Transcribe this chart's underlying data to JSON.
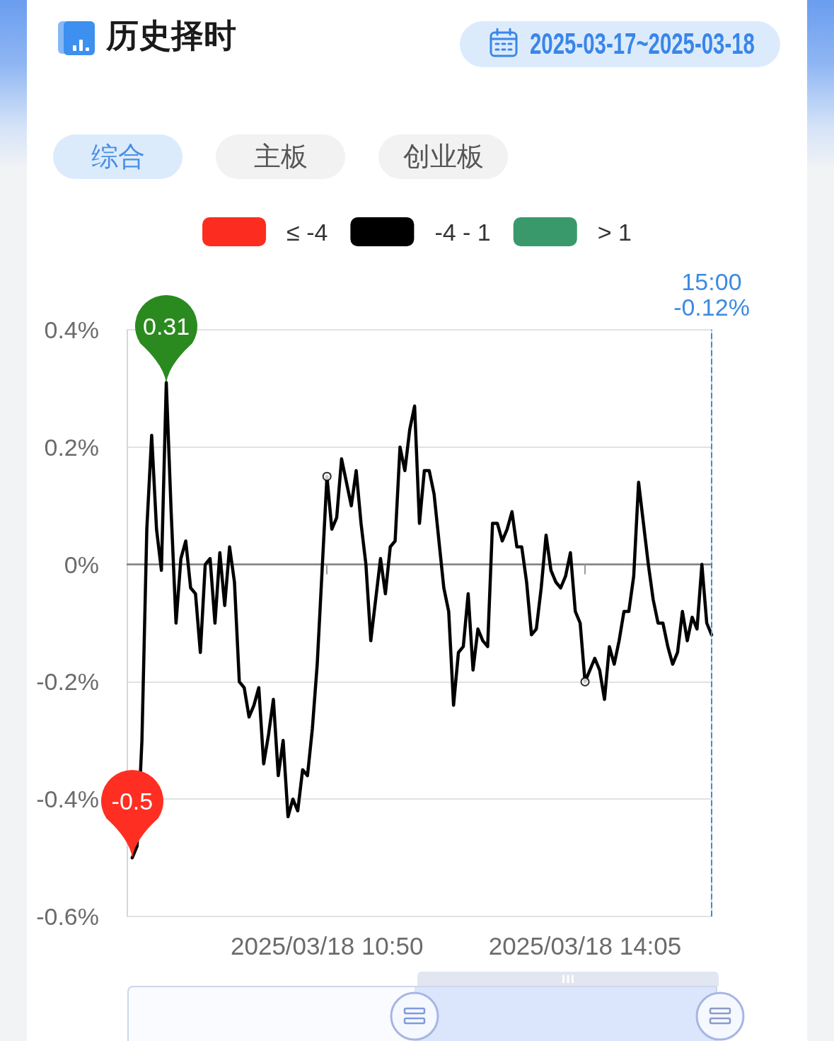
{
  "chart_data": {
    "type": "line",
    "title": "历史择时",
    "subtitle": "2025-03-17~2025-03-18",
    "categories": [
      null,
      null,
      null,
      null,
      null,
      null,
      null,
      null,
      null,
      null,
      null,
      null,
      null,
      null,
      null,
      null,
      null,
      null,
      null,
      null,
      null,
      null,
      null,
      null,
      null,
      null,
      null,
      null,
      null,
      null,
      null,
      null,
      null,
      null,
      null,
      null,
      null,
      null,
      null,
      null,
      null,
      "2025/03/18 10:50",
      null,
      null,
      null,
      null,
      null,
      null,
      null,
      null,
      null,
      null,
      null,
      null,
      null,
      null,
      null,
      null,
      null,
      null,
      null,
      null,
      null,
      null,
      null,
      null,
      null,
      null,
      null,
      null,
      null,
      null,
      null,
      null,
      null,
      null,
      null,
      null,
      null,
      null,
      null,
      null,
      null,
      null,
      null,
      null,
      null,
      null,
      null,
      null,
      null,
      null,
      null,
      null,
      "2025/03/18 14:05",
      null,
      null,
      null,
      null,
      null,
      null,
      null,
      null,
      null,
      null,
      null,
      null,
      null,
      null,
      null,
      null,
      null,
      null,
      null,
      null,
      null,
      null,
      null,
      null,
      null,
      null
    ],
    "series": [
      {
        "name": "≤ -4",
        "color": "#fc2d20",
        "values": [
          null,
          null,
          null,
          null,
          null,
          null,
          null,
          null,
          null,
          null,
          null,
          null,
          null,
          null,
          null,
          null,
          null,
          null,
          null,
          null,
          null,
          null,
          null,
          null,
          null,
          null,
          null,
          null,
          null,
          null,
          null,
          null,
          null,
          null,
          null,
          null,
          null,
          null,
          null,
          null,
          null,
          null,
          null,
          null,
          null,
          null,
          null,
          null,
          null,
          null,
          null,
          null,
          null,
          null,
          null,
          null,
          null,
          null,
          null,
          null,
          null,
          null,
          null,
          null,
          null,
          null,
          null,
          null,
          null,
          null,
          null,
          null,
          null,
          null,
          null,
          null,
          null,
          null,
          null,
          null,
          null,
          null,
          null,
          null,
          null,
          null,
          null,
          null,
          null,
          null,
          null,
          null,
          null,
          null,
          null,
          null,
          null,
          null,
          null,
          null,
          null,
          null,
          null,
          null,
          null,
          null,
          null,
          null,
          null,
          null,
          null,
          null,
          null,
          null,
          null,
          null,
          null,
          null,
          null,
          null,
          null
        ]
      },
      {
        "name": "-4 - 1",
        "color": "#000000",
        "values": [
          null,
          -0.5,
          -0.48,
          -0.3,
          0.06,
          0.22,
          0.06,
          -0.01,
          0.31,
          0.09,
          -0.1,
          0.01,
          0.04,
          -0.04,
          -0.05,
          -0.15,
          0,
          0.01,
          -0.1,
          0.02,
          -0.07,
          0.03,
          -0.03,
          -0.2,
          -0.21,
          -0.26,
          -0.24,
          -0.21,
          -0.34,
          -0.29,
          -0.23,
          -0.36,
          -0.3,
          -0.43,
          -0.4,
          -0.42,
          -0.35,
          -0.36,
          -0.28,
          -0.17,
          -0.01,
          0.15,
          0.06,
          0.08,
          0.18,
          0.14,
          0.1,
          0.16,
          0.07,
          0,
          -0.13,
          -0.06,
          0.01,
          -0.05,
          0.03,
          0.04,
          0.2,
          0.16,
          0.23,
          0.27,
          0.07,
          0.16,
          0.16,
          0.12,
          0.04,
          -0.04,
          -0.08,
          -0.24,
          -0.15,
          -0.14,
          -0.05,
          -0.18,
          -0.11,
          -0.13,
          -0.14,
          0.07,
          0.07,
          0.04,
          0.06,
          0.09,
          0.03,
          0.03,
          -0.03,
          -0.12,
          -0.11,
          -0.04,
          0.05,
          -0.01,
          -0.03,
          -0.04,
          -0.02,
          0.02,
          -0.08,
          -0.1,
          -0.2,
          -0.18,
          -0.16,
          -0.18,
          -0.23,
          -0.14,
          -0.17,
          -0.13,
          -0.08,
          -0.08,
          -0.02,
          0.14,
          0.07,
          0,
          -0.06,
          -0.1,
          -0.1,
          -0.14,
          -0.17,
          -0.15,
          -0.08,
          -0.13,
          -0.09,
          -0.11,
          0,
          -0.1,
          -0.12
        ]
      },
      {
        "name": "> 1",
        "color": "#3a996a",
        "values": [
          null,
          null,
          null,
          null,
          null,
          null,
          null,
          null,
          null,
          null,
          null,
          null,
          null,
          null,
          null,
          null,
          null,
          null,
          null,
          null,
          null,
          null,
          null,
          null,
          null,
          null,
          null,
          null,
          null,
          null,
          null,
          null,
          null,
          null,
          null,
          null,
          null,
          null,
          null,
          null,
          null,
          null,
          null,
          null,
          null,
          null,
          null,
          null,
          null,
          null,
          null,
          null,
          null,
          null,
          null,
          null,
          null,
          null,
          null,
          null,
          null,
          null,
          null,
          null,
          null,
          null,
          null,
          null,
          null,
          null,
          null,
          null,
          null,
          null,
          null,
          null,
          null,
          null,
          null,
          null,
          null,
          null,
          null,
          null,
          null,
          null,
          null,
          null,
          null,
          null,
          null,
          null,
          null,
          null,
          null,
          null,
          null,
          null,
          null,
          null,
          null,
          null,
          null,
          null,
          null,
          null,
          null,
          null,
          null,
          null,
          null,
          null,
          null,
          null,
          null,
          null,
          null,
          null,
          null,
          null,
          null
        ]
      },
      {
        "type": "scatter",
        "color": "#000000",
        "x": [
          "2025/03/18 10:50",
          "2025/03/18 14:05"
        ],
        "values": [
          0.15,
          -0.2
        ]
      }
    ],
    "ylim": [
      -0.6,
      0.4
    ],
    "yticks": [
      {
        "value": -0.6,
        "label": "-0.6%"
      },
      {
        "value": -0.4,
        "label": "-0.4%"
      },
      {
        "value": -0.2,
        "label": "-0.2%"
      },
      {
        "value": 0,
        "label": "0%"
      },
      {
        "value": 0.2,
        "label": "0.2%"
      },
      {
        "value": 0.4,
        "label": "0.4%"
      }
    ],
    "grid": "y",
    "legend": "top",
    "annotations": [
      "综合",
      "主板",
      "创业板",
      {
        "text": "0.31",
        "y": 0.31
      },
      {
        "text": "-0.5",
        "y": -0.5
      },
      "15:00\n-0.12%"
    ]
  }
}
